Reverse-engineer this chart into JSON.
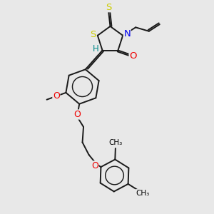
{
  "bg_color": "#e8e8e8",
  "bond_color": "#1a1a1a",
  "atom_colors": {
    "S": "#cccc00",
    "N": "#0000ee",
    "O": "#ee0000",
    "H": "#008888"
  },
  "bond_width": 1.4,
  "font_size": 8.5
}
